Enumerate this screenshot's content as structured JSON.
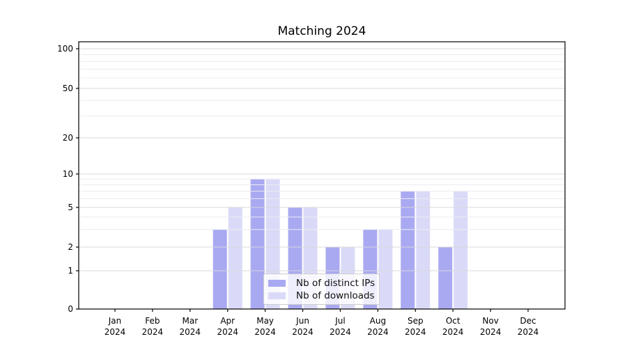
{
  "title": "Matching 2024",
  "chart_data": {
    "type": "bar",
    "title": "Matching 2024",
    "categories": [
      "Jan",
      "Feb",
      "Mar",
      "Apr",
      "May",
      "Jun",
      "Jul",
      "Aug",
      "Sep",
      "Oct",
      "Nov",
      "Dec"
    ],
    "category_year": "2024",
    "series": [
      {
        "name": "Nb of distinct IPs",
        "color": "#a9a9f2",
        "values": [
          0,
          0,
          0,
          3,
          9,
          5,
          2,
          3,
          7,
          2,
          0,
          0
        ]
      },
      {
        "name": "Nb of downloads",
        "color": "#dadaf8",
        "values": [
          0,
          0,
          0,
          5,
          9,
          5,
          2,
          3,
          7,
          7,
          0,
          0
        ]
      }
    ],
    "yscale": "log-like (0,1,2,5,10,20,50,100)",
    "ylim": [
      0,
      100
    ],
    "yticks": [
      0,
      1,
      2,
      5,
      10,
      20,
      50,
      100
    ],
    "yticks_minor": [
      3,
      4,
      6,
      7,
      8,
      9,
      30,
      40,
      60,
      70,
      80,
      90
    ],
    "grid": true,
    "legend_position": "inside lower-center"
  },
  "colors": {
    "background": "#ffffff",
    "bar_distinct_ips": "#a9a9f2",
    "bar_downloads": "#dadaf8",
    "grid_major": "#d8d8dd",
    "grid_minor": "#ececf1",
    "axis": "#000000",
    "text": "#000000",
    "legend_border": "#cccccc"
  }
}
